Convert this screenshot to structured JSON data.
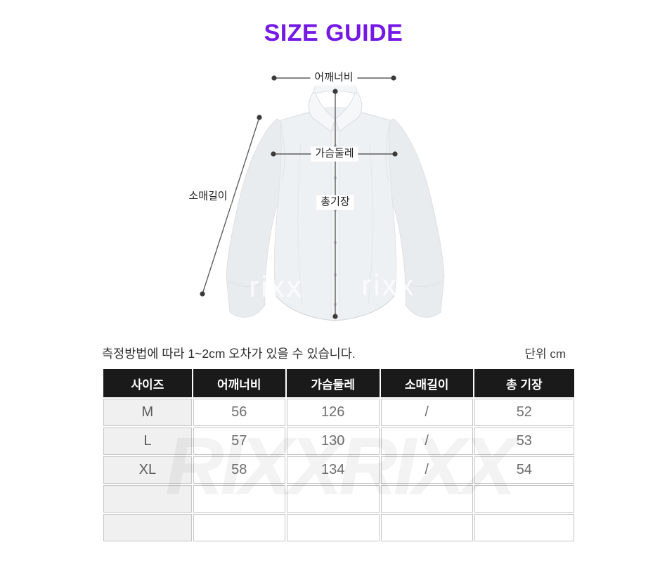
{
  "title": "SIZE GUIDE",
  "figure": {
    "labels": {
      "shoulder": "어깨너비",
      "chest": "가슴둘레",
      "sleeve": "소매길이",
      "length": "총기장"
    },
    "watermark": "rixx"
  },
  "note": "측정방법에 따라 1~2cm 오차가 있을 수 있습니다.",
  "unit_label": "단위 cm",
  "table": {
    "headers": [
      "사이즈",
      "어깨너비",
      "가슴둘레",
      "소매길이",
      "총 기장"
    ],
    "rows": [
      [
        "M",
        "56",
        "126",
        "/",
        "52"
      ],
      [
        "L",
        "57",
        "130",
        "/",
        "53"
      ],
      [
        "XL",
        "58",
        "134",
        "/",
        "54"
      ],
      [
        "",
        "",
        "",
        "",
        ""
      ],
      [
        "",
        "",
        "",
        "",
        ""
      ]
    ],
    "watermark": "RIXXRIXX"
  },
  "colors": {
    "accent": "#7418e6",
    "header_bg": "#1a1a1a",
    "size_col_bg": "#f0f0f0",
    "measure_line": "#5f5f5f",
    "measure_dot": "#3a3a3a"
  }
}
